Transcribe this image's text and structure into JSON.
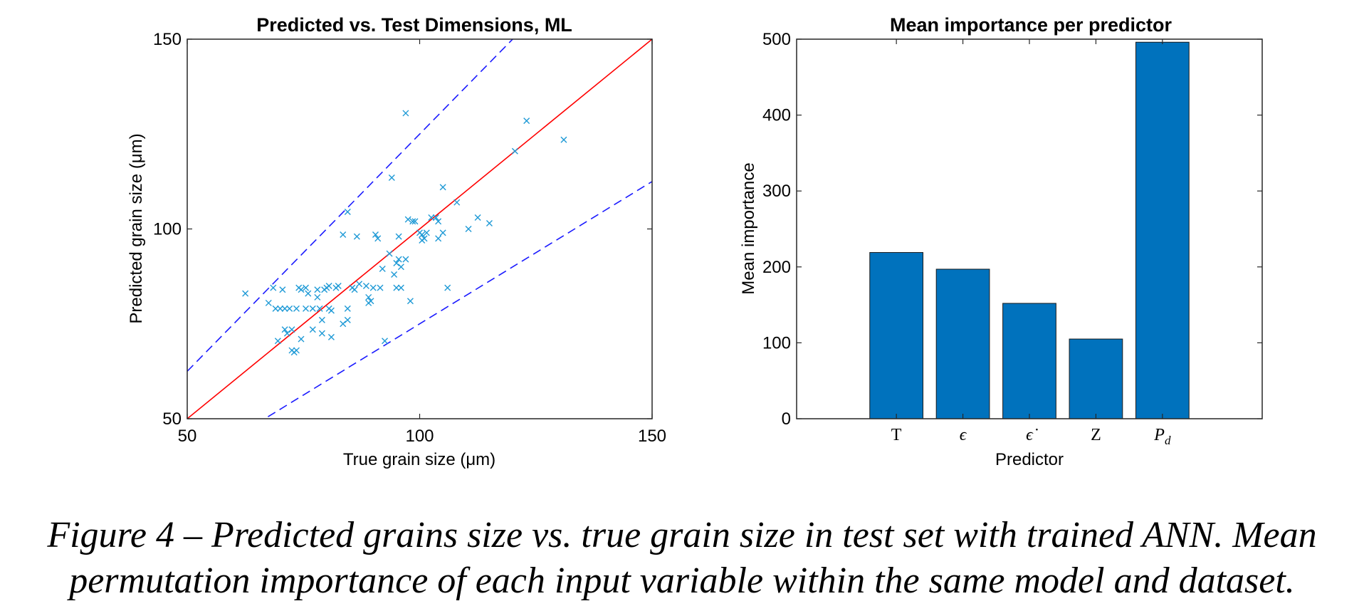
{
  "caption": {
    "line1": "Figure 4 – Predicted grains size vs. true grain size in test set with trained ANN. Mean",
    "line2": "permutation importance of each input variable within the same model and dataset."
  },
  "chart_data": [
    {
      "type": "scatter",
      "title": "Predicted vs. Test Dimensions, ML",
      "xlabel": "True grain size (μm)",
      "ylabel": "Predicted grain size (μm)",
      "xlim": [
        50,
        150
      ],
      "ylim": [
        50,
        150
      ],
      "xticks": [
        50,
        100,
        150
      ],
      "yticks": [
        50,
        100,
        150
      ],
      "marker": "x",
      "marker_color": "#1f9ad6",
      "lines": [
        {
          "style": "solid",
          "color": "#ff0000",
          "slope": 1.0,
          "intercept": 0
        },
        {
          "style": "dashed",
          "color": "#1a1aff",
          "slope": 1.25,
          "intercept": 0
        },
        {
          "style": "dashed",
          "color": "#1a1aff",
          "slope": 0.75,
          "intercept": 0
        }
      ],
      "points": [
        [
          62.5,
          83
        ],
        [
          67.5,
          80.5
        ],
        [
          68.5,
          84.5
        ],
        [
          69,
          79
        ],
        [
          69.5,
          70.5
        ],
        [
          70,
          79
        ],
        [
          70.5,
          84
        ],
        [
          71,
          73.5
        ],
        [
          71,
          79
        ],
        [
          71.5,
          72.5
        ],
        [
          72,
          79
        ],
        [
          72.5,
          73.5
        ],
        [
          72.5,
          68
        ],
        [
          73,
          67.5
        ],
        [
          73.5,
          79
        ],
        [
          73.5,
          68
        ],
        [
          74,
          84.5
        ],
        [
          74.5,
          71
        ],
        [
          74.5,
          84
        ],
        [
          75.5,
          84.5
        ],
        [
          75.5,
          79
        ],
        [
          76,
          83
        ],
        [
          77,
          73.5
        ],
        [
          77,
          79
        ],
        [
          78,
          82
        ],
        [
          78,
          84
        ],
        [
          78.5,
          79
        ],
        [
          79,
          72.5
        ],
        [
          79,
          76
        ],
        [
          79.5,
          84
        ],
        [
          80,
          84.5
        ],
        [
          80.5,
          85
        ],
        [
          80.5,
          79
        ],
        [
          81,
          78.5
        ],
        [
          81,
          71.5
        ],
        [
          82,
          84.5
        ],
        [
          82.5,
          85
        ],
        [
          83.5,
          98.5
        ],
        [
          83.5,
          75
        ],
        [
          84.5,
          104.5
        ],
        [
          84.5,
          76
        ],
        [
          84.5,
          79
        ],
        [
          85.5,
          84.5
        ],
        [
          86,
          84
        ],
        [
          86.5,
          98
        ],
        [
          87,
          85.5
        ],
        [
          88.5,
          85
        ],
        [
          89,
          82
        ],
        [
          89,
          80.5
        ],
        [
          89.5,
          81
        ],
        [
          90,
          84.5
        ],
        [
          90.5,
          98.5
        ],
        [
          91,
          97.5
        ],
        [
          91.5,
          84.5
        ],
        [
          92,
          89.5
        ],
        [
          92.5,
          70.5
        ],
        [
          93.5,
          93.5
        ],
        [
          94,
          113.5
        ],
        [
          94.5,
          88
        ],
        [
          95,
          84.5
        ],
        [
          95,
          91
        ],
        [
          95.5,
          98
        ],
        [
          95.5,
          92
        ],
        [
          96,
          84.5
        ],
        [
          96,
          90
        ],
        [
          97,
          92
        ],
        [
          97,
          130.5
        ],
        [
          97.5,
          102.5
        ],
        [
          98,
          81
        ],
        [
          98.5,
          102
        ],
        [
          99,
          102
        ],
        [
          100,
          99
        ],
        [
          100.5,
          97
        ],
        [
          100.5,
          98.5
        ],
        [
          101,
          97.5
        ],
        [
          101.5,
          99
        ],
        [
          102.5,
          103
        ],
        [
          103.5,
          103
        ],
        [
          104,
          102
        ],
        [
          104,
          97.5
        ],
        [
          105,
          111
        ],
        [
          105,
          99
        ],
        [
          106,
          84.5
        ],
        [
          108,
          107
        ],
        [
          110.5,
          100
        ],
        [
          112.5,
          103
        ],
        [
          115,
          101.5
        ],
        [
          120.5,
          120.5
        ],
        [
          123,
          128.5
        ],
        [
          131,
          123.5
        ]
      ]
    },
    {
      "type": "bar",
      "title": "Mean importance per predictor",
      "xlabel": "Predictor",
      "ylabel": "Mean importance",
      "categories": [
        "T",
        "ϵ",
        "ϵ̇",
        "Z",
        "Pd"
      ],
      "values": [
        219,
        197,
        152,
        105,
        496
      ],
      "ylim": [
        0,
        500
      ],
      "yticks": [
        0,
        100,
        200,
        300,
        400,
        500
      ],
      "bar_color": "#0072bd"
    }
  ]
}
